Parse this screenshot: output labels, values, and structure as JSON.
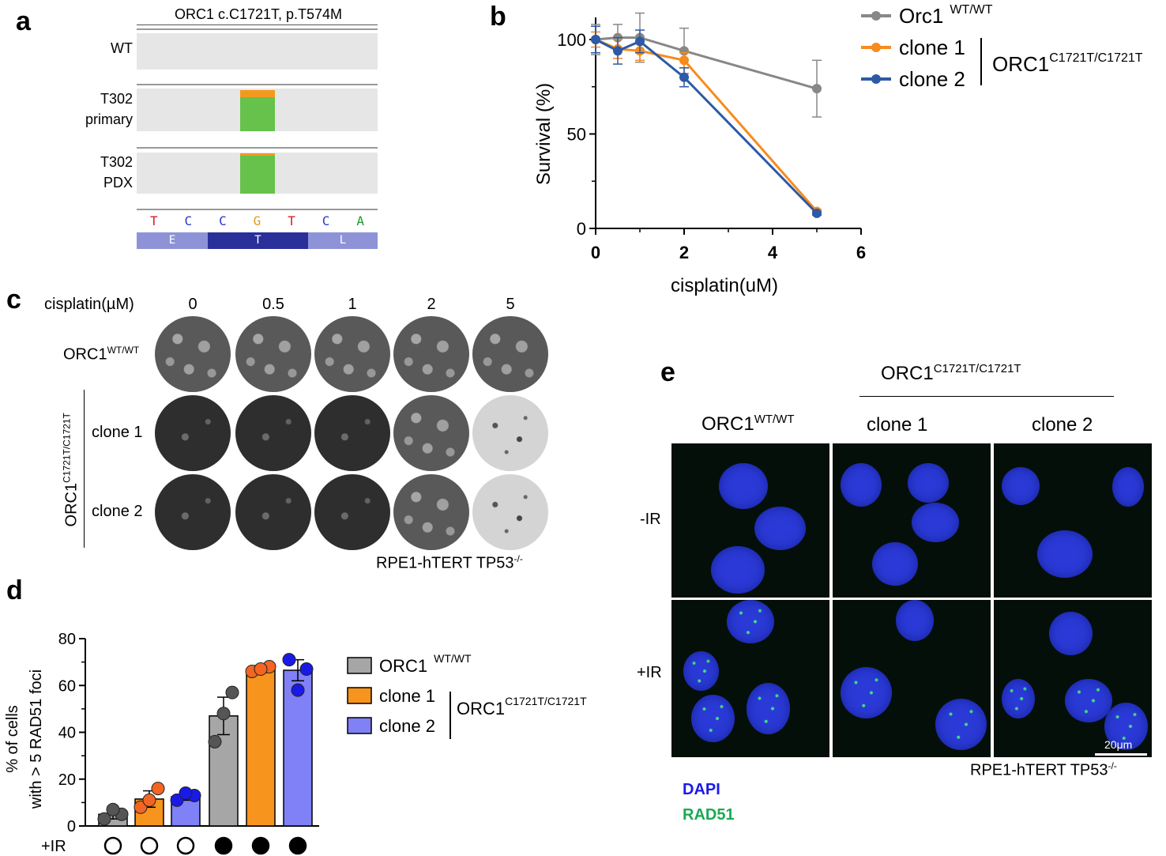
{
  "panels": {
    "a": "a",
    "b": "b",
    "c": "c",
    "d": "d",
    "e": "e"
  },
  "panel_a": {
    "title": "ORC1 c.C1721T, p.T574M",
    "tracks": [
      {
        "label_lines": [
          "WT"
        ],
        "variant_fraction": 0
      },
      {
        "label_lines": [
          "T302",
          "primary"
        ],
        "variant_fraction": 0.85
      },
      {
        "label_lines": [
          "T302",
          "PDX"
        ],
        "variant_fraction": 0.95
      }
    ],
    "bases": [
      "T",
      "C",
      "C",
      "G",
      "T",
      "C",
      "A"
    ],
    "base_colors": {
      "T": "#d62020",
      "C": "#2b35c9",
      "G": "#e39a1a",
      "A": "#1e9a2a"
    },
    "amino_acids": [
      "E",
      "T",
      "L"
    ],
    "colors": {
      "ref": "#e6e6e6",
      "variant_green": "#66c24a",
      "variant_orange": "#f39a1e",
      "aa_light": "#8e93d8",
      "aa_dark": "#2a2f9a"
    }
  },
  "chart_data": [
    {
      "type": "line",
      "panel": "b",
      "xlabel": "cisplatin(uM)",
      "ylabel": "Survival (%)",
      "xlim": [
        0,
        6
      ],
      "ylim": [
        0,
        100
      ],
      "xticks": [
        0,
        2,
        4,
        6
      ],
      "yticks": [
        0,
        50,
        100
      ],
      "x": [
        0,
        0.5,
        1,
        2,
        5
      ],
      "series": [
        {
          "name": "Orc1",
          "sup": "WT/WT",
          "color": "#888888",
          "values": [
            100,
            101,
            101,
            94,
            74
          ],
          "err": [
            8,
            7,
            13,
            12,
            15
          ]
        },
        {
          "name": "clone 1",
          "color": "#f78b1d",
          "values": [
            100,
            95,
            94,
            89,
            9
          ],
          "err": [
            4,
            5,
            5,
            4,
            1
          ]
        },
        {
          "name": "clone 2",
          "color": "#2d5aa6",
          "values": [
            100,
            94,
            99,
            80,
            8
          ],
          "err": [
            7,
            7,
            6,
            5,
            1
          ]
        }
      ],
      "bracket_label": "ORC1",
      "bracket_sup": "C1721T/C1721T"
    },
    {
      "type": "bar",
      "panel": "d",
      "ylabel_lines": [
        "% of cells",
        "with > 5 RAD51 foci"
      ],
      "ylim": [
        0,
        80
      ],
      "yticks": [
        0,
        20,
        40,
        60,
        80
      ],
      "categories": [
        "ORC1 WT/WT -IR",
        "clone 1 -IR",
        "clone 2 -IR",
        "ORC1 WT/WT +IR",
        "clone 1 +IR",
        "clone 2 +IR"
      ],
      "values": [
        5,
        11.5,
        12.5,
        47,
        67,
        66.5
      ],
      "err": [
        2,
        3.5,
        1.5,
        8,
        1.5,
        4.5
      ],
      "points": [
        [
          3,
          5,
          7
        ],
        [
          8,
          16,
          11
        ],
        [
          11,
          13,
          14
        ],
        [
          36,
          57,
          48
        ],
        [
          66,
          68,
          67
        ],
        [
          71,
          67,
          58
        ]
      ],
      "ir_marker_label": "+IR",
      "ir": [
        false,
        false,
        false,
        true,
        true,
        true
      ],
      "legend": [
        {
          "name": "ORC1",
          "sup": "WT/WT",
          "color": "#a6a6a6"
        },
        {
          "name": "clone 1",
          "sup": "",
          "color": "#f7941d"
        },
        {
          "name": "clone 2",
          "sup": "",
          "color": "#8080f7"
        }
      ],
      "point_colors": [
        "#555555",
        "#f26522",
        "#1a1ae6",
        "#555555",
        "#f26522",
        "#1a1ae6"
      ],
      "bracket_label": "ORC1",
      "bracket_sup": "C1721T/C1721T"
    }
  ],
  "panel_c": {
    "header": "cisplatin(µM)",
    "concentrations": [
      "0",
      "0.5",
      "1",
      "2",
      "5"
    ],
    "wt_label": "ORC1",
    "wt_sup": "WT/WT",
    "mut_label": "ORC1",
    "mut_sup": "C1721T/C1721T",
    "clone1": "clone 1",
    "clone2": "clone 2",
    "cell_line": "RPE1-hTERT TP53",
    "cell_line_sup": "-/-"
  },
  "panel_e": {
    "mut_header": "ORC1",
    "mut_sup": "C1721T/C1721T",
    "wt_label": "ORC1",
    "wt_sup": "WT/WT",
    "clone1": "clone 1",
    "clone2": "clone 2",
    "row_minus": "-IR",
    "row_plus": "+IR",
    "scale_bar": "20μm",
    "cell_line": "RPE1-hTERT TP53",
    "cell_line_sup": "-/-",
    "legend_dapi": "DAPI",
    "legend_rad51": "RAD51",
    "dapi_color": "#1a1ae6",
    "rad51_color": "#1aaa55"
  }
}
